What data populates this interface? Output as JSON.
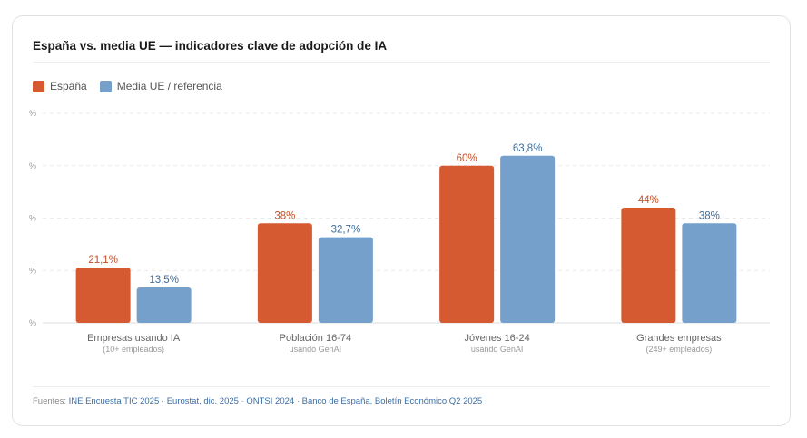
{
  "title": "España vs. media UE — indicadores clave de adopción de IA",
  "colors": {
    "spain": "#d65a31",
    "eu": "#74a0cb",
    "spain_text": "#c4512a",
    "eu_text": "#3d6d9c"
  },
  "legend": [
    {
      "label": "España",
      "color": "#d65a31"
    },
    {
      "label": "Media UE / referencia",
      "color": "#74a0cb"
    }
  ],
  "chart_data": {
    "type": "bar",
    "categories": [
      "Empresas usando IA",
      "Población 16-74",
      "Jóvenes 16-24",
      "Grandes empresas"
    ],
    "category_sublabels": [
      "(10+ empleados)",
      "usando GenAI",
      "usando GenAI",
      "(249+ empleados)"
    ],
    "series": [
      {
        "name": "España",
        "values": [
          21.1,
          38,
          60,
          44
        ],
        "labels": [
          "21,1%",
          "38%",
          "60%",
          "44%"
        ]
      },
      {
        "name": "Media UE / referencia",
        "values": [
          13.5,
          32.7,
          63.8,
          38
        ],
        "labels": [
          "13,5%",
          "32,7%",
          "63,8%",
          "38%"
        ]
      }
    ],
    "ylim": [
      0,
      80
    ],
    "ytick_labels": [
      "%",
      "%",
      "%",
      "%",
      "%"
    ],
    "grid": true,
    "legend_position": "top-left"
  },
  "sources": {
    "label": "Fuentes:",
    "items": [
      "INE Encuesta TIC 2025",
      "Eurostat, dic. 2025",
      "ONTSI 2024",
      "Banco de España, Boletín Económico Q2 2025"
    ]
  }
}
